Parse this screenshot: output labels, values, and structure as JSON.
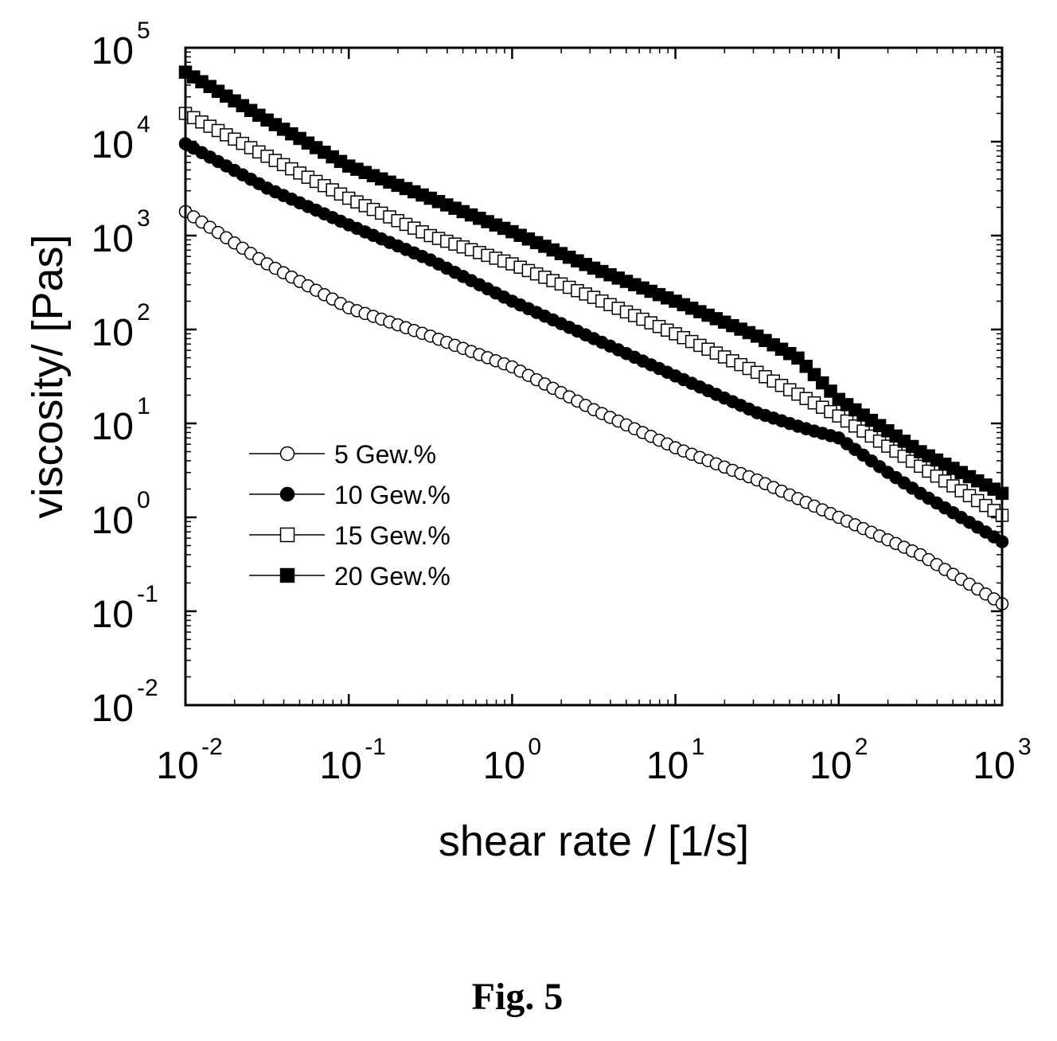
{
  "caption": "Fig. 5",
  "chart_data": {
    "type": "scatter",
    "xscale": "log",
    "yscale": "log",
    "xlabel": "shear rate / [1/s]",
    "ylabel": "viscosity/ [Pas]",
    "xlim": [
      0.01,
      1000
    ],
    "ylim": [
      0.01,
      100000
    ],
    "x_ticks": [
      {
        "base": "10",
        "exp": "-2"
      },
      {
        "base": "10",
        "exp": "-1"
      },
      {
        "base": "10",
        "exp": "0"
      },
      {
        "base": "10",
        "exp": "1"
      },
      {
        "base": "10",
        "exp": "2"
      },
      {
        "base": "10",
        "exp": "3"
      }
    ],
    "y_ticks": [
      {
        "base": "10",
        "exp": "-2"
      },
      {
        "base": "10",
        "exp": "-1"
      },
      {
        "base": "10",
        "exp": "0"
      },
      {
        "base": "10",
        "exp": "1"
      },
      {
        "base": "10",
        "exp": "2"
      },
      {
        "base": "10",
        "exp": "3"
      },
      {
        "base": "10",
        "exp": "4"
      },
      {
        "base": "10",
        "exp": "5"
      }
    ],
    "legend_position": "left-middle",
    "series": [
      {
        "name": "5 Gew.%",
        "marker": "open-circle",
        "x": [
          0.01,
          0.0316,
          0.1,
          0.316,
          1,
          3.16,
          10,
          31.6,
          100,
          316,
          1000
        ],
        "y": [
          1800,
          500,
          170,
          85,
          40,
          14,
          5.5,
          2.5,
          1.0,
          0.4,
          0.12
        ]
      },
      {
        "name": "10 Gew.%",
        "marker": "filled-circle",
        "x": [
          0.01,
          0.0316,
          0.1,
          0.316,
          1,
          3.16,
          10,
          31.6,
          60,
          100,
          200,
          316,
          1000
        ],
        "y": [
          9500,
          3200,
          1300,
          550,
          200,
          80,
          32,
          13,
          9,
          7,
          3,
          1.8,
          0.55
        ]
      },
      {
        "name": "15 Gew.%",
        "marker": "open-square",
        "x": [
          0.01,
          0.0316,
          0.1,
          0.316,
          1,
          3.16,
          10,
          31.6,
          100,
          316,
          1000
        ],
        "y": [
          20000,
          7000,
          2500,
          1000,
          500,
          220,
          90,
          35,
          12,
          3.5,
          1.05
        ]
      },
      {
        "name": "20 Gew.%",
        "marker": "filled-square",
        "x": [
          0.01,
          0.0316,
          0.1,
          0.316,
          1,
          3.16,
          10,
          31.6,
          56,
          100,
          316,
          1000
        ],
        "y": [
          55000,
          17000,
          5500,
          2500,
          1100,
          450,
          200,
          85,
          50,
          18,
          5,
          1.8
        ]
      }
    ]
  }
}
